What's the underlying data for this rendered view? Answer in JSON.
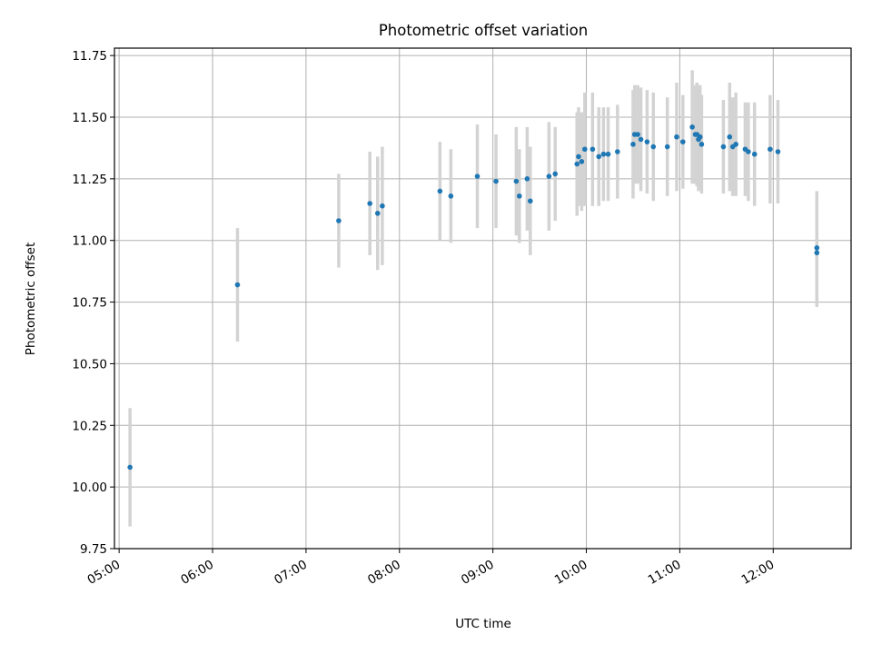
{
  "chart_data": {
    "type": "scatter",
    "title": "Photometric offset variation",
    "xlabel": "UTC time",
    "ylabel": "Photometric offset",
    "xlim": [
      "04:57",
      "12:50"
    ],
    "ylim": [
      9.75,
      11.78
    ],
    "xticks": [
      "05:00",
      "06:00",
      "07:00",
      "08:00",
      "09:00",
      "10:00",
      "11:00",
      "12:00"
    ],
    "yticks": [
      "9.75",
      "10.00",
      "10.25",
      "10.50",
      "10.75",
      "11.00",
      "11.25",
      "11.50",
      "11.75"
    ],
    "grid": true,
    "colors": {
      "point": "#1f77b4",
      "errorbar": "#d3d3d3",
      "grid": "#b0b0b0"
    },
    "series": [
      {
        "x": [
          "05:07",
          "06:16",
          "07:21",
          "07:41",
          "07:46",
          "07:49",
          "08:26",
          "08:33",
          "08:50",
          "09:02",
          "09:15",
          "09:17",
          "09:22",
          "09:24",
          "09:36",
          "09:40",
          "09:54",
          "09:55",
          "09:57",
          "09:59",
          "10:04",
          "10:08",
          "10:11",
          "10:14",
          "10:20",
          "10:30",
          "10:31",
          "10:33",
          "10:35",
          "10:39",
          "10:43",
          "10:52",
          "10:58",
          "11:02",
          "11:08",
          "11:10",
          "11:11",
          "11:12",
          "11:13",
          "11:14",
          "11:28",
          "11:32",
          "11:34",
          "11:36",
          "11:42",
          "11:44",
          "11:48",
          "11:58",
          "12:03",
          "12:28",
          "12:28"
        ],
        "y": [
          10.08,
          10.82,
          11.08,
          11.15,
          11.11,
          11.14,
          11.2,
          11.18,
          11.26,
          11.24,
          11.24,
          11.18,
          11.25,
          11.16,
          11.26,
          11.27,
          11.31,
          11.34,
          11.32,
          11.37,
          11.37,
          11.34,
          11.35,
          11.35,
          11.36,
          11.39,
          11.43,
          11.43,
          11.41,
          11.4,
          11.38,
          11.38,
          11.42,
          11.4,
          11.46,
          11.43,
          11.43,
          11.41,
          11.42,
          11.39,
          11.38,
          11.42,
          11.38,
          11.39,
          11.37,
          11.36,
          11.35,
          11.37,
          11.36,
          10.95,
          10.97
        ],
        "yerr": [
          0.24,
          0.23,
          0.19,
          0.21,
          0.23,
          0.24,
          0.2,
          0.19,
          0.21,
          0.19,
          0.22,
          0.19,
          0.21,
          0.22,
          0.22,
          0.19,
          0.21,
          0.2,
          0.2,
          0.23,
          0.23,
          0.2,
          0.19,
          0.19,
          0.19,
          0.22,
          0.2,
          0.2,
          0.21,
          0.21,
          0.22,
          0.2,
          0.22,
          0.19,
          0.23,
          0.2,
          0.21,
          0.21,
          0.21,
          0.2,
          0.19,
          0.22,
          0.2,
          0.21,
          0.19,
          0.2,
          0.21,
          0.22,
          0.21,
          0.22,
          0.23
        ]
      }
    ]
  }
}
